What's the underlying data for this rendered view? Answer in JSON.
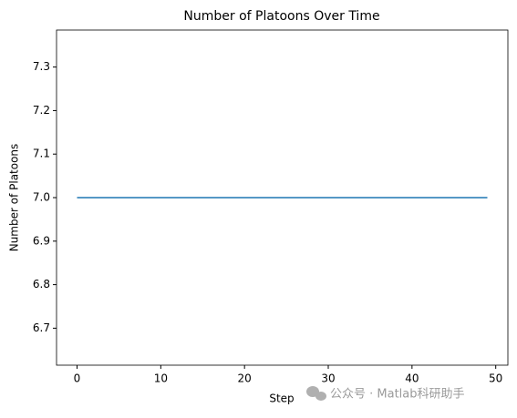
{
  "chart_data": {
    "type": "line",
    "title": "Number of Platoons Over Time",
    "x_label": "Step",
    "y_label": "Number of Platoons",
    "x": [
      0,
      1,
      2,
      3,
      4,
      5,
      6,
      7,
      8,
      9,
      10,
      11,
      12,
      13,
      14,
      15,
      16,
      17,
      18,
      19,
      20,
      21,
      22,
      23,
      24,
      25,
      26,
      27,
      28,
      29,
      30,
      31,
      32,
      33,
      34,
      35,
      36,
      37,
      38,
      39,
      40,
      41,
      42,
      43,
      44,
      45,
      46,
      47,
      48,
      49
    ],
    "series": [
      {
        "color": "#1f77b4",
        "values": [
          7,
          7,
          7,
          7,
          7,
          7,
          7,
          7,
          7,
          7,
          7,
          7,
          7,
          7,
          7,
          7,
          7,
          7,
          7,
          7,
          7,
          7,
          7,
          7,
          7,
          7,
          7,
          7,
          7,
          7,
          7,
          7,
          7,
          7,
          7,
          7,
          7,
          7,
          7,
          7,
          7,
          7,
          7,
          7,
          7,
          7,
          7,
          7,
          7,
          7
        ]
      }
    ],
    "xlim": [
      -2.45,
      51.45
    ],
    "xticks": [
      0,
      10,
      20,
      30,
      40,
      50
    ],
    "ylim": [
      6.615,
      7.385
    ],
    "yticks": [
      6.7,
      6.8,
      6.9,
      {
        "value": 7,
        "label": "7.0"
      },
      7.1,
      7.2,
      7.3
    ],
    "grid": false,
    "watermark": "公众号 · Matlab科研助手"
  }
}
